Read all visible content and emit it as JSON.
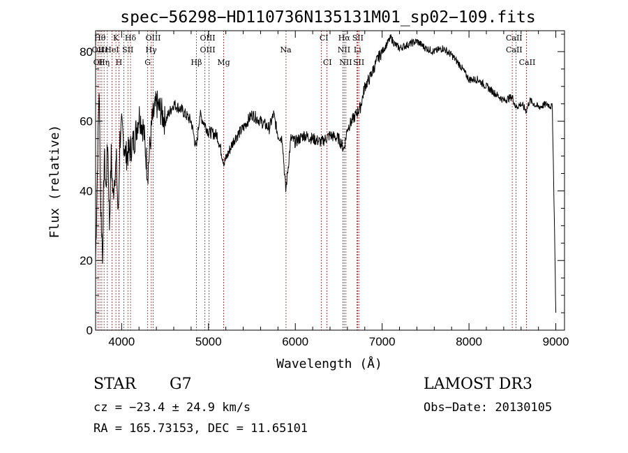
{
  "chart_data": {
    "type": "line",
    "title": "spec−56298−HD110736N135131M01_sp02−109.fits",
    "xlabel": "Wavelength (Å)",
    "ylabel": "Flux (relative)",
    "xlim": [
      3700,
      9100
    ],
    "ylim": [
      0,
      86
    ],
    "x_ticks": [
      4000,
      5000,
      6000,
      7000,
      8000,
      9000
    ],
    "y_ticks": [
      0,
      20,
      40,
      60,
      80
    ],
    "series": [
      {
        "name": "flux",
        "x": [
          3700,
          3720,
          3740,
          3760,
          3780,
          3800,
          3820,
          3840,
          3860,
          3880,
          3900,
          3920,
          3940,
          3960,
          3980,
          4000,
          4050,
          4100,
          4150,
          4200,
          4250,
          4300,
          4350,
          4400,
          4450,
          4500,
          4600,
          4700,
          4800,
          4860,
          4900,
          5000,
          5100,
          5180,
          5300,
          5400,
          5500,
          5600,
          5700,
          5750,
          5800,
          5850,
          5890,
          5950,
          6000,
          6100,
          6200,
          6300,
          6400,
          6500,
          6560,
          6600,
          6650,
          6700,
          6750,
          6800,
          6850,
          6900,
          6950,
          7000,
          7050,
          7100,
          7150,
          7200,
          7300,
          7400,
          7500,
          7600,
          7700,
          7800,
          7900,
          8000,
          8100,
          8200,
          8300,
          8400,
          8500,
          8540,
          8600,
          8660,
          8700,
          8800,
          8900,
          8960,
          8990,
          9000
        ],
        "values": [
          20,
          45,
          70,
          35,
          22,
          50,
          40,
          55,
          30,
          50,
          38,
          45,
          48,
          32,
          55,
          58,
          50,
          52,
          55,
          62,
          58,
          45,
          60,
          65,
          63,
          60,
          65,
          63,
          60,
          52,
          62,
          57,
          56,
          48,
          55,
          58,
          62,
          60,
          58,
          62,
          56,
          55,
          40,
          55,
          54,
          56,
          55,
          54,
          56,
          55,
          52,
          58,
          60,
          62,
          64,
          70,
          72,
          75,
          78,
          80,
          82,
          84,
          82,
          81,
          82,
          83,
          81,
          80,
          81,
          79,
          76,
          72,
          72,
          70,
          68,
          66,
          67,
          64,
          65,
          63,
          66,
          64,
          65,
          64,
          22,
          5
        ]
      }
    ],
    "lines_row1": [
      "Hθ",
      "K",
      "Hδ",
      "OIII",
      "OIII",
      "CI",
      "Hα",
      "SII",
      "CaII"
    ],
    "lines_row2": [
      "OII",
      "Hε",
      "HeI",
      "SII",
      "Hγ",
      "OIII",
      "Na",
      "NII",
      "Li",
      "CaII"
    ],
    "lines_row3": [
      "OI",
      "Hη",
      "H",
      "G",
      "Hβ",
      "Mg",
      "CI",
      "NII",
      "SII",
      "CaII"
    ],
    "line_wavelengths": [
      3727,
      3750,
      3771,
      3798,
      3835,
      3889,
      3934,
      3969,
      4026,
      4072,
      4102,
      4300,
      4341,
      4363,
      4861,
      4959,
      5007,
      5175,
      5893,
      6300,
      6363,
      6548,
      6563,
      6583,
      6708,
      6717,
      6731,
      8498,
      8542,
      8662
    ]
  },
  "info": {
    "class_label": "STAR",
    "subclass": "G7",
    "survey": "LAMOST DR3",
    "cz": "cz = −23.4 ± 24.9 km/s",
    "obs_date": "Obs−Date: 20130105",
    "radec": "RA = 165.73153, DEC =  11.65101"
  }
}
